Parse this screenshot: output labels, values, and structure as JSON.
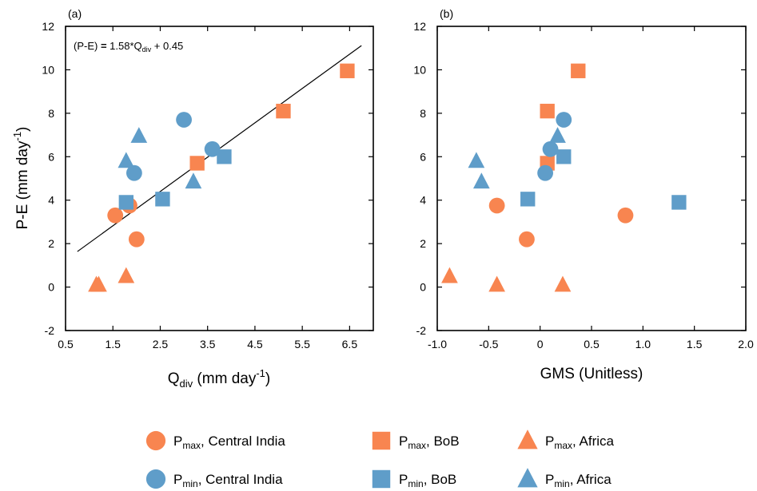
{
  "chart_data": [
    {
      "type": "scatter",
      "panel_label": "(a)",
      "xlabel": {
        "main": "Q",
        "sub": "div",
        "rest": " (mm day",
        "sup": "-1",
        "end": ")"
      },
      "ylabel": {
        "main": "P-E (mm day",
        "sup": "-1",
        "end": ")"
      },
      "xlim": [
        0.5,
        7.0
      ],
      "ylim": [
        -2,
        12
      ],
      "xticks": [
        "0.5",
        "1.5",
        "2.5",
        "3.5",
        "4.5",
        "5.5",
        "6.5"
      ],
      "xtick_values": [
        0.5,
        1.5,
        2.5,
        3.5,
        4.5,
        5.5,
        6.5
      ],
      "yticks": [
        "-2",
        "0",
        "2",
        "4",
        "6",
        "8",
        "10",
        "12"
      ],
      "ytick_values": [
        -2,
        0,
        2,
        4,
        6,
        8,
        10,
        12
      ],
      "annotation": {
        "a": "(P-E) ",
        "b": "=",
        "c": " 1.58*Q",
        "sub": "div",
        "d": " + 0.45"
      },
      "fit_line": {
        "slope": 1.58,
        "intercept": 0.45,
        "x_range": [
          0.75,
          6.75
        ]
      },
      "series": [
        {
          "key": "pmax_ci",
          "marker": "circle",
          "color": "#F88550",
          "points": [
            [
              1.55,
              3.3
            ],
            [
              1.85,
              3.75
            ],
            [
              2.0,
              2.2
            ]
          ]
        },
        {
          "key": "pmax_bob",
          "marker": "square",
          "color": "#F88550",
          "points": [
            [
              3.28,
              5.7
            ],
            [
              5.1,
              8.1
            ],
            [
              6.45,
              9.95
            ]
          ]
        },
        {
          "key": "pmax_af",
          "marker": "triangle",
          "color": "#F88550",
          "points": [
            [
              1.15,
              0.1
            ],
            [
              1.2,
              0.1
            ],
            [
              1.78,
              0.5
            ]
          ]
        },
        {
          "key": "pmin_ci",
          "marker": "circle",
          "color": "#5F9DC9",
          "points": [
            [
              1.95,
              5.25
            ],
            [
              3.0,
              7.7
            ],
            [
              3.6,
              6.35
            ]
          ]
        },
        {
          "key": "pmin_bob",
          "marker": "square",
          "color": "#5F9DC9",
          "points": [
            [
              1.78,
              3.9
            ],
            [
              2.55,
              4.05
            ],
            [
              3.85,
              6.0
            ]
          ]
        },
        {
          "key": "pmin_af",
          "marker": "triangle",
          "color": "#5F9DC9",
          "points": [
            [
              1.78,
              5.8
            ],
            [
              2.05,
              6.95
            ],
            [
              3.2,
              4.85
            ]
          ]
        }
      ]
    },
    {
      "type": "scatter",
      "panel_label": "(b)",
      "xlabel": {
        "main": "GMS (Unitless)"
      },
      "xlim": [
        -1.0,
        2.0
      ],
      "ylim": [
        -2,
        12
      ],
      "xticks": [
        "-1.0",
        "-0.5",
        "0",
        "0.5",
        "1.0",
        "1.5",
        "2.0"
      ],
      "xtick_values": [
        -1.0,
        -0.5,
        0,
        0.5,
        1.0,
        1.5,
        2.0
      ],
      "yticks": [
        "-2",
        "0",
        "2",
        "4",
        "6",
        "8",
        "10",
        "12"
      ],
      "ytick_values": [
        -2,
        0,
        2,
        4,
        6,
        8,
        10,
        12
      ],
      "series": [
        {
          "key": "pmax_ci",
          "marker": "circle",
          "color": "#F88550",
          "points": [
            [
              -0.42,
              3.75
            ],
            [
              -0.13,
              2.2
            ],
            [
              0.83,
              3.3
            ]
          ]
        },
        {
          "key": "pmax_bob",
          "marker": "square",
          "color": "#F88550",
          "points": [
            [
              0.07,
              8.1
            ],
            [
              0.07,
              5.7
            ],
            [
              0.37,
              9.95
            ]
          ]
        },
        {
          "key": "pmax_af",
          "marker": "triangle",
          "color": "#F88550",
          "points": [
            [
              -0.88,
              0.5
            ],
            [
              -0.42,
              0.1
            ],
            [
              0.22,
              0.1
            ]
          ]
        },
        {
          "key": "pmin_ci",
          "marker": "circle",
          "color": "#5F9DC9",
          "points": [
            [
              0.05,
              5.25
            ],
            [
              0.1,
              6.35
            ],
            [
              0.23,
              7.7
            ]
          ]
        },
        {
          "key": "pmin_bob",
          "marker": "square",
          "color": "#5F9DC9",
          "points": [
            [
              -0.12,
              4.05
            ],
            [
              0.23,
              6.0
            ],
            [
              1.35,
              3.9
            ]
          ]
        },
        {
          "key": "pmin_af",
          "marker": "triangle",
          "color": "#5F9DC9",
          "points": [
            [
              -0.62,
              5.8
            ],
            [
              -0.57,
              4.85
            ],
            [
              0.17,
              6.95
            ]
          ]
        }
      ]
    }
  ],
  "legend": {
    "items": [
      {
        "key": "pmax_ci",
        "marker": "circle",
        "color": "#F88550",
        "symbol": "P",
        "sub": "max",
        "text": ", Central India"
      },
      {
        "key": "pmax_bob",
        "marker": "square",
        "color": "#F88550",
        "symbol": "P",
        "sub": "max",
        "text": ", BoB"
      },
      {
        "key": "pmax_af",
        "marker": "triangle",
        "color": "#F88550",
        "symbol": "P",
        "sub": "max",
        "text": ", Africa"
      },
      {
        "key": "pmin_ci",
        "marker": "circle",
        "color": "#5F9DC9",
        "symbol": "P",
        "sub": "min",
        "text": ", Central India"
      },
      {
        "key": "pmin_bob",
        "marker": "square",
        "color": "#5F9DC9",
        "symbol": "P",
        "sub": "min",
        "text": ", BoB"
      },
      {
        "key": "pmin_af",
        "marker": "triangle",
        "color": "#5F9DC9",
        "symbol": "P",
        "sub": "min",
        "text": ", Africa"
      }
    ]
  }
}
